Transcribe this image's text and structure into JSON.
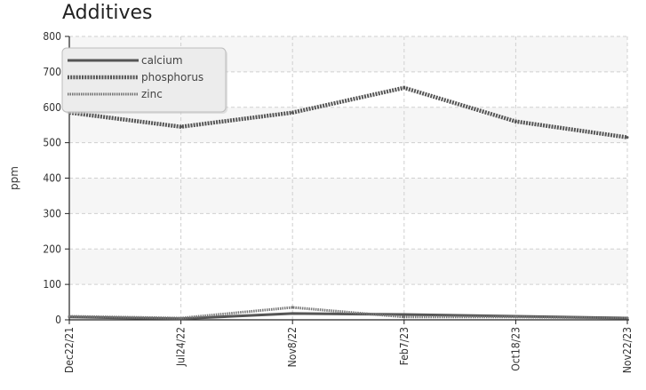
{
  "chart_data": {
    "type": "line",
    "title": "Additives",
    "ylabel": "ppm",
    "xlabel": "",
    "ylim": [
      0,
      800
    ],
    "yticks": [
      0,
      100,
      200,
      300,
      400,
      500,
      600,
      700,
      800
    ],
    "categories": [
      "Dec22/21",
      "Jul24/22",
      "Nov8/22",
      "Feb7/23",
      "Oct18/23",
      "Nov22/23"
    ],
    "grid": true,
    "legend_position": "top-left",
    "series": [
      {
        "name": "calcium",
        "values": [
          8,
          3,
          18,
          15,
          10,
          5
        ],
        "color": "#555555",
        "style": "solid"
      },
      {
        "name": "phosphorus",
        "values": [
          585,
          545,
          585,
          655,
          560,
          515
        ],
        "color": "#555555",
        "style": "dotted-thick"
      },
      {
        "name": "zinc",
        "values": [
          10,
          5,
          35,
          8,
          8,
          5
        ],
        "color": "#777777",
        "style": "dotted"
      }
    ]
  }
}
